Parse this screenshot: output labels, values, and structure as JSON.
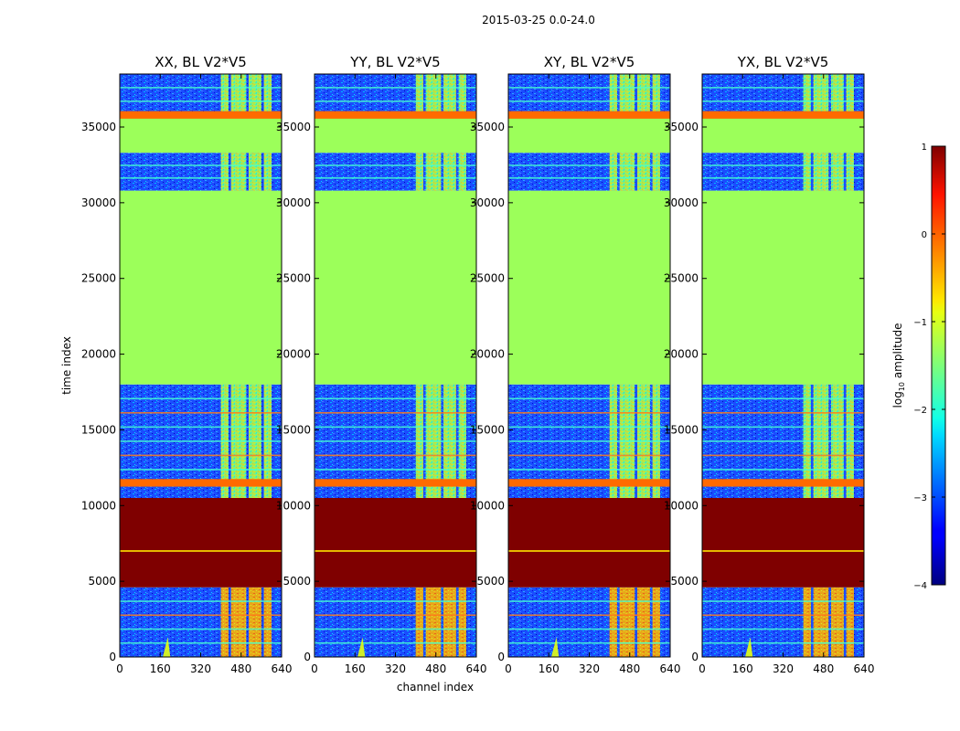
{
  "chart_data": {
    "type": "heatmap",
    "suptitle": "2015-03-25 0.0-24.0",
    "xlabel": "channel index",
    "ylabel": "time index",
    "xlim": [
      0,
      640
    ],
    "ylim": [
      0,
      38500
    ],
    "xticks": [
      0,
      160,
      320,
      480,
      640
    ],
    "yticks": [
      0,
      5000,
      10000,
      15000,
      20000,
      25000,
      30000,
      35000
    ],
    "panels": [
      {
        "title": "XX, BL V2*V5",
        "pol": "XX"
      },
      {
        "title": "YY, BL V2*V5",
        "pol": "YY"
      },
      {
        "title": "XY, BL V2*V5",
        "pol": "XY"
      },
      {
        "title": "YX, BL V2*V5",
        "pol": "YX"
      }
    ],
    "time_segments": [
      {
        "start": 0,
        "end": 4600,
        "state": "noise with bright channel bands"
      },
      {
        "start": 4600,
        "end": 10500,
        "state": "saturated",
        "log10_amplitude": 1
      },
      {
        "start": 10500,
        "end": 18000,
        "state": "noise with bright channel bands"
      },
      {
        "start": 18000,
        "end": 30800,
        "state": "flat",
        "log10_amplitude": -1.2
      },
      {
        "start": 30800,
        "end": 33300,
        "state": "noise with bright channel bands"
      },
      {
        "start": 33300,
        "end": 35800,
        "state": "flat",
        "log10_amplitude": -1.2
      },
      {
        "start": 35800,
        "end": 38500,
        "state": "noise with bright channel bands"
      }
    ],
    "bright_channel_bands": [
      [
        400,
        430
      ],
      [
        440,
        500
      ],
      [
        510,
        560
      ],
      [
        570,
        600
      ]
    ],
    "colorbar": {
      "label": "log10 amplitude",
      "label_base": "log",
      "label_sub": "10",
      "label_rest": " amplitude",
      "range": [
        -4,
        1
      ],
      "ticks": [
        1,
        0,
        -1,
        -2,
        -3,
        -4
      ],
      "colormap": "jet"
    }
  }
}
